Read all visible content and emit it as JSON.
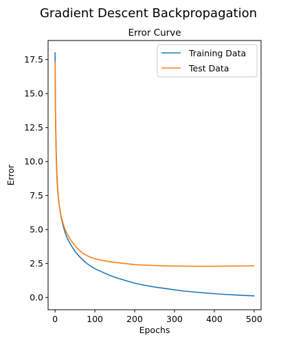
{
  "figure": {
    "suptitle": "Gradient Descent Backpropagation"
  },
  "chart_data": {
    "type": "line",
    "title": "Error Curve",
    "xlabel": "Epochs",
    "ylabel": "Error",
    "xlim": [
      -17.5,
      517.5
    ],
    "ylim": [
      -0.9,
      18.9
    ],
    "xticks": [
      0,
      100,
      200,
      300,
      400,
      500
    ],
    "xtick_labels": [
      "0",
      "100",
      "200",
      "300",
      "400",
      "500"
    ],
    "yticks": [
      0.0,
      2.5,
      5.0,
      7.5,
      10.0,
      12.5,
      15.0,
      17.5
    ],
    "ytick_labels": [
      "0.0",
      "2.5",
      "5.0",
      "7.5",
      "10.0",
      "12.5",
      "15.0",
      "17.5"
    ],
    "grid": false,
    "legend_position": "top-right",
    "x": [
      0,
      1,
      2,
      3,
      4,
      5,
      7,
      10,
      13,
      16,
      20,
      25,
      30,
      40,
      50,
      60,
      70,
      80,
      90,
      100,
      120,
      140,
      160,
      180,
      200,
      225,
      250,
      275,
      300,
      325,
      350,
      375,
      400,
      425,
      450,
      475,
      500
    ],
    "series": [
      {
        "name": "Training Data",
        "color": "#1f77b4",
        "values": [
          18.0,
          14.0,
          12.0,
          10.6,
          9.6,
          8.8,
          7.8,
          6.9,
          6.3,
          5.8,
          5.3,
          4.8,
          4.4,
          3.85,
          3.4,
          3.05,
          2.75,
          2.5,
          2.3,
          2.12,
          1.85,
          1.6,
          1.4,
          1.22,
          1.05,
          0.9,
          0.77,
          0.67,
          0.56,
          0.47,
          0.4,
          0.34,
          0.28,
          0.23,
          0.19,
          0.15,
          0.12
        ]
      },
      {
        "name": "Test Data",
        "color": "#ff7f0e",
        "values": [
          17.3,
          13.5,
          11.5,
          10.3,
          9.3,
          8.6,
          7.7,
          6.9,
          6.35,
          5.9,
          5.45,
          5.0,
          4.7,
          4.2,
          3.8,
          3.5,
          3.25,
          3.08,
          2.95,
          2.85,
          2.72,
          2.62,
          2.55,
          2.48,
          2.42,
          2.38,
          2.35,
          2.33,
          2.31,
          2.31,
          2.3,
          2.3,
          2.3,
          2.31,
          2.31,
          2.32,
          2.33
        ]
      }
    ]
  }
}
